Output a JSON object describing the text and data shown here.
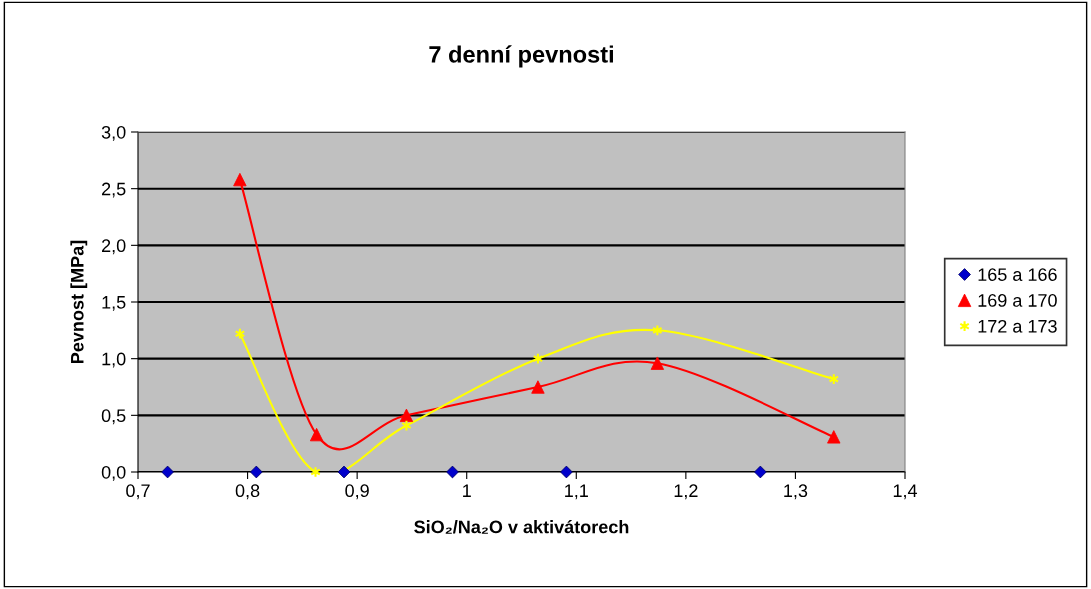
{
  "chart_data": {
    "type": "scatter",
    "title": "7 denní pevnosti",
    "xlabel": "SiO₂/Na₂O v aktivátorech",
    "ylabel": "Pevnost [MPa]",
    "xlim": [
      0.7,
      1.4
    ],
    "xticks": [
      {
        "value": 0.7,
        "label": "0,7"
      },
      {
        "value": 0.8,
        "label": "0,8"
      },
      {
        "value": 0.9,
        "label": "0,9"
      },
      1,
      {
        "value": 1.1,
        "label": "1,1"
      },
      {
        "value": 1.2,
        "label": "1,2"
      },
      {
        "value": 1.3,
        "label": "1,3"
      },
      {
        "value": 1.4,
        "label": "1,4"
      }
    ],
    "ylim": [
      0,
      3
    ],
    "yticks": [
      {
        "value": 0,
        "label": "0,0"
      },
      {
        "value": 0.5,
        "label": "0,5"
      },
      {
        "value": 1.0,
        "label": "1,0"
      },
      {
        "value": 1.5,
        "label": "1,5"
      },
      {
        "value": 2.0,
        "label": "2,0"
      },
      {
        "value": 2.5,
        "label": "2,5"
      },
      {
        "value": 3.0,
        "label": "3,0"
      }
    ],
    "grid": "y",
    "legend": "right",
    "series": [
      {
        "name": "165 a 166",
        "marker": "diamond",
        "color": "#0000cc",
        "x": [
          0.727,
          0.808,
          0.888,
          0.987,
          1.091,
          1.268
        ],
        "values": [
          0,
          0,
          0,
          0,
          0,
          0
        ]
      },
      {
        "name": "169 a 170",
        "type": "line",
        "marker": "triangle",
        "color": "#ff0000",
        "x": [
          0.793,
          0.863,
          0.945,
          1.065,
          1.174,
          1.335
        ],
        "values": [
          2.58,
          0.33,
          0.5,
          0.75,
          0.96,
          0.31
        ]
      },
      {
        "name": "172 a 173",
        "type": "line",
        "marker": "cross",
        "color": "#ffff00",
        "x": [
          0.793,
          0.862,
          0.945,
          1.065,
          1.174,
          1.335
        ],
        "values": [
          1.22,
          0.0,
          0.41,
          1.0,
          1.25,
          0.82
        ]
      }
    ]
  }
}
